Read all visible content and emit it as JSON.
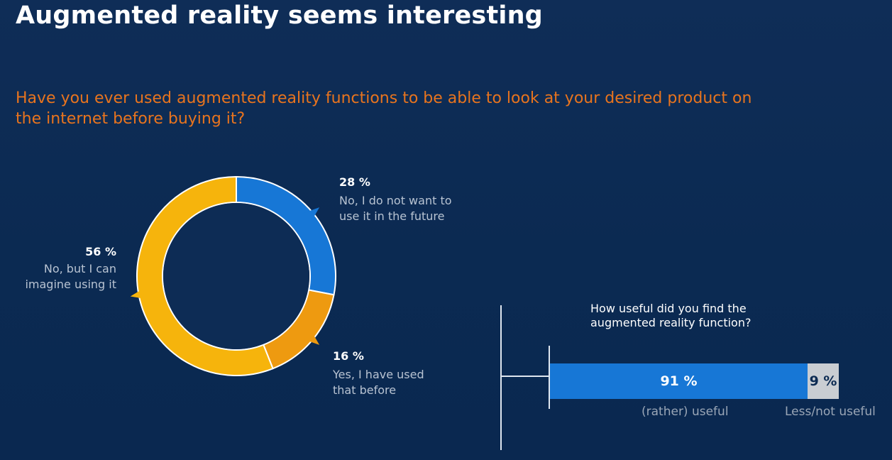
{
  "title": "Augmented reality seems interesting",
  "chart_data": [
    {
      "type": "pie",
      "variant": "donut",
      "title": "Have you ever used augmented reality functions to be able to look at your desired product on the internet before buying it?",
      "slices": [
        {
          "label": "No, I do not want to use it in the future",
          "label_lines": [
            "No, I do not want to",
            "use it in the future"
          ],
          "value": 28,
          "value_label": "28 %",
          "color": "#1777d6"
        },
        {
          "label": "Yes, I have used that before",
          "label_lines": [
            "Yes, I have used",
            "that before"
          ],
          "value": 16,
          "value_label": "16 %",
          "color": "#ee9a10"
        },
        {
          "label": "No, but I can imagine using it",
          "label_lines": [
            "No, but I can",
            "imagine using it"
          ],
          "value": 56,
          "value_label": "56 %",
          "color": "#f6b40c"
        }
      ],
      "legend": "none"
    },
    {
      "type": "bar",
      "orientation": "horizontal-stacked",
      "title": "How useful did you find the augmented reality function?",
      "title_lines": [
        "How useful did you find the",
        "augmented reality function?"
      ],
      "categories": [
        "(rather) useful",
        "Less/not useful"
      ],
      "values": [
        91,
        9
      ],
      "value_labels": [
        "91 %",
        "9 %"
      ],
      "colors": [
        "#1777d6",
        "#c9cdd2"
      ]
    }
  ]
}
